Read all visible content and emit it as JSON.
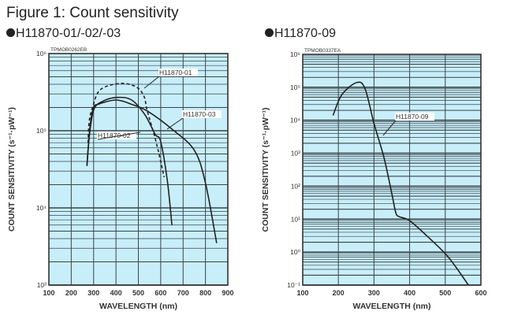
{
  "figure_title": "Figure 1: Count sensitivity",
  "chart_data": [
    {
      "type": "line",
      "title": "H11870-01/-02/-03",
      "code": "TPMOB0262EB",
      "xlabel": "WAVELENGTH (nm)",
      "ylabel": "COUNT SENSITIVITY (s⁻¹·pW⁻¹)",
      "xlim": [
        100,
        900
      ],
      "ylim": [
        1000,
        1000000
      ],
      "yscale": "log",
      "grid": true,
      "xticks": [
        "100",
        "200",
        "300",
        "400",
        "500",
        "600",
        "700",
        "800",
        "900"
      ],
      "yticks": [
        {
          "value": 1000,
          "label": "10³"
        },
        {
          "value": 10000,
          "label": "10⁴"
        },
        {
          "value": 100000,
          "label": "10⁵"
        },
        {
          "value": 1000000,
          "label": "10⁶"
        }
      ],
      "series": [
        {
          "name": "H11870-01",
          "style": "solid",
          "x": [
            270,
            280,
            300,
            340,
            405,
            470,
            530,
            575,
            600,
            630,
            650
          ],
          "y": [
            35000,
            80000,
            185000,
            240000,
            270000,
            250000,
            160000,
            90000,
            72000,
            22000,
            6000
          ]
        },
        {
          "name": "H11870-02",
          "style": "dashed",
          "x": [
            275,
            280,
            295,
            330,
            420,
            490,
            525,
            540,
            575,
            600,
            615
          ],
          "y": [
            70000,
            130000,
            200000,
            340000,
            410000,
            370000,
            280000,
            180000,
            80000,
            40000,
            25000
          ]
        },
        {
          "name": "H11870-03",
          "style": "solid",
          "x": [
            270,
            285,
            300,
            320,
            400,
            470,
            540,
            650,
            750,
            800,
            850
          ],
          "y": [
            35000,
            120000,
            200000,
            220000,
            250000,
            220000,
            180000,
            105000,
            56000,
            21000,
            3500
          ]
        }
      ]
    },
    {
      "type": "line",
      "title": "H11870-09",
      "code": "TPMOB0337EA",
      "xlabel": "WAVELENGTH (nm)",
      "ylabel": "COUNT SENSITIVITY (s⁻¹·pW⁻¹)",
      "xlim": [
        100,
        600
      ],
      "ylim": [
        0.1,
        1000000
      ],
      "yscale": "log",
      "grid": true,
      "xticks": [
        "100",
        "200",
        "300",
        "400",
        "500",
        "600"
      ],
      "yticks": [
        {
          "value": 0.1,
          "label": "10⁻¹"
        },
        {
          "value": 1,
          "label": "10⁰"
        },
        {
          "value": 10,
          "label": "10¹"
        },
        {
          "value": 100,
          "label": "10²"
        },
        {
          "value": 1000,
          "label": "10³"
        },
        {
          "value": 10000,
          "label": "10⁴"
        },
        {
          "value": 100000,
          "label": "10⁵"
        },
        {
          "value": 1000000,
          "label": "10⁶"
        }
      ],
      "series": [
        {
          "name": "H11870-09",
          "style": "solid",
          "x": [
            185,
            210,
            252,
            275,
            300,
            328,
            350,
            361,
            370,
            400,
            450,
            500,
            530,
            565
          ],
          "y": [
            14000,
            60000,
            140000,
            90000,
            8000,
            740,
            60,
            16,
            12,
            9,
            3,
            0.9,
            0.35,
            0.1
          ]
        }
      ]
    }
  ]
}
